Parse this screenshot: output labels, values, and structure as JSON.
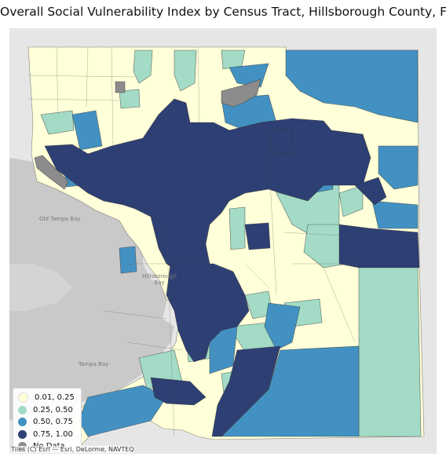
{
  "title": "Overall Social Vulnerability Index by Census Tract, Hillsborough County, FL",
  "legend": {
    "items": [
      {
        "label": "0.01, 0.25",
        "color": "#ffffd9"
      },
      {
        "label": "0.25, 0.50",
        "color": "#a3dbc6"
      },
      {
        "label": "0.50, 0.75",
        "color": "#4391c2"
      },
      {
        "label": "0.75, 1.00",
        "color": "#2e3f73"
      },
      {
        "label": "No Data",
        "color": "#8c8c8c"
      }
    ]
  },
  "basemap": {
    "labels": [
      "Old Tampa Bay",
      "Hillsborough Bay",
      "Tampa Bay"
    ],
    "attribution": "Tiles (C) Esri — Esri, DeLorme, NAVTEQ"
  },
  "colors": {
    "land": "#e6e6e6",
    "water": "#c9c9c9",
    "tract_border": "#333333"
  }
}
